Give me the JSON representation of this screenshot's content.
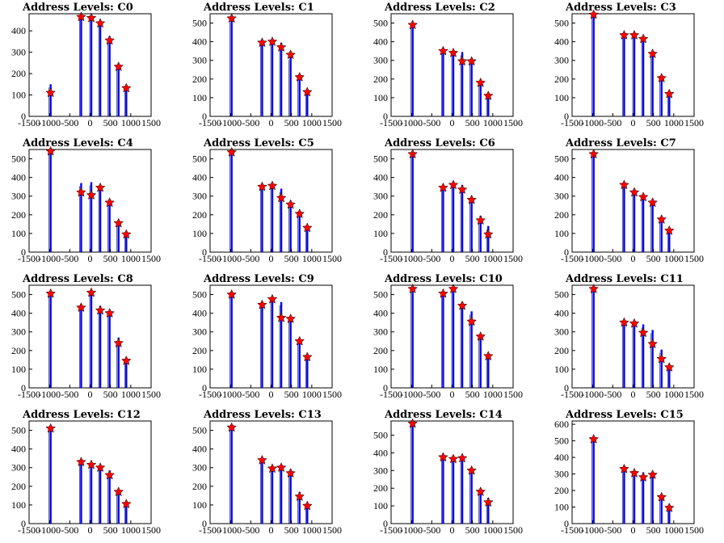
{
  "chart_data": [
    {
      "type": "bar",
      "title": "Address Levels: C0",
      "xlim": [
        -1500,
        1500
      ],
      "ylim": [
        0,
        480
      ],
      "yticks": [
        0,
        100,
        200,
        300,
        400
      ],
      "xticks": [
        -1500,
        -1000,
        -500,
        0,
        500,
        1000,
        1500
      ],
      "x": [
        -970,
        -220,
        30,
        250,
        480,
        700,
        890
      ],
      "values": [
        150,
        470,
        470,
        450,
        375,
        240,
        135
      ],
      "peaks": [
        110,
        465,
        460,
        435,
        355,
        232,
        132
      ]
    },
    {
      "type": "bar",
      "title": "Address Levels: C1",
      "xlim": [
        -1500,
        1500
      ],
      "ylim": [
        0,
        550
      ],
      "yticks": [
        0,
        100,
        200,
        300,
        400,
        500
      ],
      "xticks": [
        -1500,
        -1000,
        -500,
        0,
        500,
        1000,
        1500
      ],
      "x": [
        -970,
        -220,
        30,
        250,
        480,
        700,
        890
      ],
      "values": [
        520,
        410,
        400,
        395,
        320,
        220,
        135
      ],
      "peaks": [
        525,
        395,
        400,
        370,
        330,
        210,
        130
      ]
    },
    {
      "type": "bar",
      "title": "Address Levels: C2",
      "xlim": [
        -1500,
        1500
      ],
      "ylim": [
        0,
        550
      ],
      "yticks": [
        0,
        100,
        200,
        300,
        400,
        500
      ],
      "xticks": [
        -1500,
        -1000,
        -500,
        0,
        500,
        1000,
        1500
      ],
      "x": [
        -970,
        -220,
        30,
        250,
        480,
        700,
        890
      ],
      "values": [
        500,
        350,
        345,
        345,
        300,
        185,
        120
      ],
      "peaks": [
        490,
        350,
        340,
        295,
        295,
        180,
        110
      ]
    },
    {
      "type": "bar",
      "title": "Address Levels: C3",
      "xlim": [
        -1500,
        1500
      ],
      "ylim": [
        0,
        550
      ],
      "yticks": [
        0,
        100,
        200,
        300,
        400,
        500
      ],
      "xticks": [
        -1500,
        -1000,
        -500,
        0,
        500,
        1000,
        1500
      ],
      "x": [
        -970,
        -220,
        30,
        250,
        480,
        700,
        890
      ],
      "values": [
        550,
        440,
        440,
        420,
        340,
        215,
        130
      ],
      "peaks": [
        545,
        435,
        435,
        415,
        335,
        205,
        120
      ]
    },
    {
      "type": "bar",
      "title": "Address Levels: C4",
      "xlim": [
        -1500,
        1500
      ],
      "ylim": [
        0,
        550
      ],
      "yticks": [
        0,
        100,
        200,
        300,
        400,
        500
      ],
      "xticks": [
        -1500,
        -1000,
        -500,
        0,
        500,
        1000,
        1500
      ],
      "x": [
        -970,
        -220,
        30,
        250,
        480,
        700,
        890
      ],
      "values": [
        550,
        370,
        375,
        345,
        270,
        165,
        105
      ],
      "peaks": [
        540,
        320,
        305,
        345,
        265,
        155,
        95
      ]
    },
    {
      "type": "bar",
      "title": "Address Levels: C5",
      "xlim": [
        -1500,
        1500
      ],
      "ylim": [
        0,
        550
      ],
      "yticks": [
        0,
        100,
        200,
        300,
        400,
        500
      ],
      "xticks": [
        -1500,
        -1000,
        -500,
        0,
        500,
        1000,
        1500
      ],
      "x": [
        -970,
        -220,
        30,
        250,
        480,
        700,
        890
      ],
      "values": [
        540,
        355,
        360,
        340,
        275,
        215,
        140
      ],
      "peaks": [
        535,
        350,
        355,
        290,
        255,
        205,
        130
      ]
    },
    {
      "type": "bar",
      "title": "Address Levels: C6",
      "xlim": [
        -1500,
        1500
      ],
      "ylim": [
        0,
        550
      ],
      "yticks": [
        0,
        100,
        200,
        300,
        400,
        500
      ],
      "xticks": [
        -1500,
        -1000,
        -500,
        0,
        500,
        1000,
        1500
      ],
      "x": [
        -970,
        -220,
        30,
        250,
        480,
        700,
        890
      ],
      "values": [
        540,
        355,
        370,
        360,
        300,
        195,
        140
      ],
      "peaks": [
        525,
        345,
        360,
        335,
        280,
        170,
        95
      ]
    },
    {
      "type": "bar",
      "title": "Address Levels: C7",
      "xlim": [
        -1500,
        1500
      ],
      "ylim": [
        0,
        550
      ],
      "yticks": [
        0,
        100,
        200,
        300,
        400,
        500
      ],
      "xticks": [
        -1500,
        -1000,
        -500,
        0,
        500,
        1000,
        1500
      ],
      "x": [
        -970,
        -220,
        30,
        250,
        480,
        700,
        890
      ],
      "values": [
        540,
        370,
        340,
        310,
        285,
        190,
        125
      ],
      "peaks": [
        525,
        360,
        320,
        295,
        265,
        175,
        115
      ]
    },
    {
      "type": "bar",
      "title": "Address Levels: C8",
      "xlim": [
        -1500,
        1500
      ],
      "ylim": [
        0,
        550
      ],
      "yticks": [
        0,
        100,
        200,
        300,
        400,
        500
      ],
      "xticks": [
        -1500,
        -1000,
        -500,
        0,
        500,
        1000,
        1500
      ],
      "x": [
        -970,
        -220,
        30,
        250,
        480,
        700,
        890
      ],
      "values": [
        510,
        450,
        520,
        440,
        410,
        270,
        155
      ],
      "peaks": [
        505,
        430,
        510,
        415,
        400,
        240,
        145
      ]
    },
    {
      "type": "bar",
      "title": "Address Levels: C9",
      "xlim": [
        -1500,
        1500
      ],
      "ylim": [
        0,
        550
      ],
      "yticks": [
        0,
        100,
        200,
        300,
        400,
        500
      ],
      "xticks": [
        -1500,
        -1000,
        -500,
        0,
        500,
        1000,
        1500
      ],
      "x": [
        -970,
        -220,
        30,
        250,
        480,
        700,
        890
      ],
      "values": [
        510,
        460,
        490,
        460,
        380,
        265,
        180
      ],
      "peaks": [
        500,
        445,
        475,
        375,
        370,
        250,
        165
      ]
    },
    {
      "type": "bar",
      "title": "Address Levels: C10",
      "xlim": [
        -1500,
        1500
      ],
      "ylim": [
        0,
        550
      ],
      "yticks": [
        0,
        100,
        200,
        300,
        400,
        500
      ],
      "xticks": [
        -1500,
        -1000,
        -500,
        0,
        500,
        1000,
        1500
      ],
      "x": [
        -970,
        -220,
        30,
        250,
        480,
        700,
        890
      ],
      "values": [
        535,
        510,
        545,
        460,
        410,
        290,
        175
      ],
      "peaks": [
        530,
        505,
        530,
        440,
        355,
        275,
        170
      ]
    },
    {
      "type": "bar",
      "title": "Address Levels: C11",
      "xlim": [
        -1500,
        1500
      ],
      "ylim": [
        0,
        550
      ],
      "yticks": [
        0,
        100,
        200,
        300,
        400,
        500
      ],
      "xticks": [
        -1500,
        -1000,
        -500,
        0,
        500,
        1000,
        1500
      ],
      "x": [
        -970,
        -220,
        30,
        250,
        480,
        700,
        890
      ],
      "values": [
        540,
        360,
        355,
        340,
        310,
        205,
        125
      ],
      "peaks": [
        530,
        350,
        345,
        295,
        235,
        155,
        110
      ]
    },
    {
      "type": "bar",
      "title": "Address Levels: C12",
      "xlim": [
        -1500,
        1500
      ],
      "ylim": [
        0,
        550
      ],
      "yticks": [
        0,
        100,
        200,
        300,
        400,
        500
      ],
      "xticks": [
        -1500,
        -1000,
        -500,
        0,
        500,
        1000,
        1500
      ],
      "x": [
        -970,
        -220,
        30,
        250,
        480,
        700,
        890
      ],
      "values": [
        520,
        330,
        310,
        300,
        285,
        175,
        120
      ],
      "peaks": [
        510,
        330,
        315,
        300,
        260,
        170,
        105
      ]
    },
    {
      "type": "bar",
      "title": "Address Levels: C13",
      "xlim": [
        -1500,
        1500
      ],
      "ylim": [
        0,
        550
      ],
      "yticks": [
        0,
        100,
        200,
        300,
        400,
        500
      ],
      "xticks": [
        -1500,
        -1000,
        -500,
        0,
        500,
        1000,
        1500
      ],
      "x": [
        -970,
        -220,
        30,
        250,
        480,
        700,
        890
      ],
      "values": [
        525,
        345,
        305,
        310,
        290,
        170,
        105
      ],
      "peaks": [
        515,
        340,
        295,
        300,
        270,
        145,
        95
      ]
    },
    {
      "type": "bar",
      "title": "Address Levels: C14",
      "xlim": [
        -1500,
        1500
      ],
      "ylim": [
        0,
        580
      ],
      "yticks": [
        0,
        100,
        200,
        300,
        400,
        500
      ],
      "xticks": [
        -1500,
        -1000,
        -500,
        0,
        500,
        1000,
        1500
      ],
      "x": [
        -970,
        -220,
        30,
        250,
        480,
        700,
        890
      ],
      "values": [
        575,
        385,
        370,
        385,
        315,
        200,
        145
      ],
      "peaks": [
        565,
        375,
        365,
        370,
        300,
        180,
        120
      ]
    },
    {
      "type": "bar",
      "title": "Address Levels: C15",
      "xlim": [
        -1500,
        1500
      ],
      "ylim": [
        0,
        620
      ],
      "yticks": [
        0,
        100,
        200,
        300,
        400,
        500,
        600
      ],
      "xticks": [
        -1500,
        -1000,
        -500,
        0,
        500,
        1000,
        1500
      ],
      "x": [
        -970,
        -220,
        30,
        250,
        480,
        700,
        890
      ],
      "values": [
        515,
        345,
        315,
        310,
        300,
        170,
        110
      ],
      "peaks": [
        510,
        330,
        305,
        280,
        295,
        160,
        95
      ]
    }
  ],
  "colors": {
    "bar": "#0000ff",
    "bar_edge": "#000000",
    "marker": "#ff0000",
    "marker_edge": "#000000",
    "axis": "#000000"
  }
}
